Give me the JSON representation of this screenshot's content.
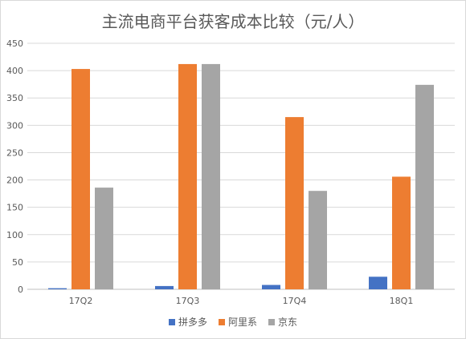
{
  "chart_data": {
    "type": "bar",
    "title": "主流电商平台获客成本比较（元/人）",
    "categories": [
      "17Q2",
      "17Q3",
      "17Q4",
      "18Q1"
    ],
    "series": [
      {
        "name": "拼多多",
        "color": "#4472c4",
        "values": [
          2,
          6,
          8,
          23
        ]
      },
      {
        "name": "阿里系",
        "color": "#ed7d31",
        "values": [
          403,
          412,
          315,
          206
        ]
      },
      {
        "name": "京东",
        "color": "#a5a5a5",
        "values": [
          186,
          412,
          180,
          374
        ]
      }
    ],
    "ylim": [
      0,
      450
    ],
    "yticks": [
      "0",
      "50",
      "100",
      "150",
      "200",
      "250",
      "300",
      "350",
      "400",
      "450"
    ],
    "grid": true,
    "legend_position": "bottom"
  }
}
